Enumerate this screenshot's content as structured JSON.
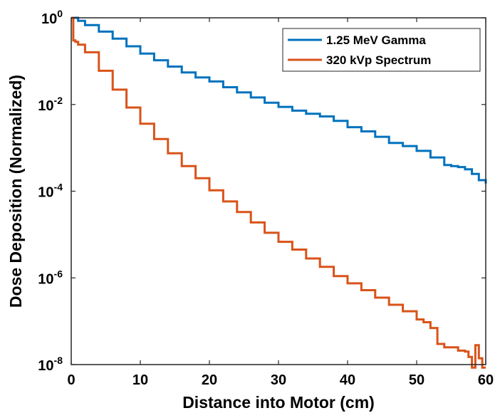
{
  "chart_data": {
    "type": "line",
    "line_style": "stairs",
    "title": "",
    "xlabel": "Distance into Motor (cm)",
    "ylabel": "Dose Deposition (Normalized)",
    "xlim": [
      0,
      60
    ],
    "ylim": [
      1e-08,
      1
    ],
    "yscale": "log",
    "xticks": [
      0,
      10,
      20,
      30,
      40,
      50,
      60
    ],
    "xtick_labels": [
      "0",
      "10",
      "20",
      "30",
      "40",
      "50",
      "60"
    ],
    "yticks": [
      1e-08,
      1e-06,
      0.0001,
      0.01,
      1
    ],
    "ytick_labels": [
      {
        "base": "10",
        "exp": "-8"
      },
      {
        "base": "10",
        "exp": "-6"
      },
      {
        "base": "10",
        "exp": "-4"
      },
      {
        "base": "10",
        "exp": "-2"
      },
      {
        "base": "10",
        "exp": "0"
      }
    ],
    "grid": false,
    "legend_position": "top-right",
    "series": [
      {
        "name": "1.25 MeV Gamma",
        "color": "#0072bd",
        "x": [
          0,
          1,
          2,
          4,
          6,
          8,
          10,
          12,
          14,
          16,
          18,
          20,
          22,
          24,
          26,
          28,
          30,
          32,
          34,
          36,
          38,
          40,
          42,
          44,
          46,
          48,
          50,
          52,
          54,
          55,
          56,
          57,
          58,
          59,
          60
        ],
        "y": [
          1.0,
          0.85,
          0.68,
          0.48,
          0.33,
          0.22,
          0.15,
          0.105,
          0.075,
          0.055,
          0.042,
          0.034,
          0.025,
          0.019,
          0.0145,
          0.011,
          0.0088,
          0.0072,
          0.0061,
          0.0053,
          0.0042,
          0.003,
          0.0024,
          0.0018,
          0.0013,
          0.0011,
          0.00085,
          0.0006,
          0.0004,
          0.00038,
          0.00036,
          0.00032,
          0.00025,
          0.00018,
          0.00015
        ]
      },
      {
        "name": "320 kVp Spectrum",
        "color": "#d95319",
        "x": [
          0,
          0.3,
          0.6,
          1,
          2,
          4,
          6,
          8,
          10,
          12,
          14,
          16,
          18,
          20,
          22,
          24,
          26,
          28,
          30,
          32,
          34,
          36,
          38,
          40,
          42,
          44,
          46,
          48,
          50,
          51,
          52,
          53,
          54,
          55,
          56,
          57,
          57.5,
          58,
          58.5,
          59,
          59.5,
          60
        ],
        "y": [
          1.0,
          0.3,
          0.28,
          0.24,
          0.16,
          0.06,
          0.022,
          0.0085,
          0.0036,
          0.0016,
          0.00075,
          0.00038,
          0.0002,
          0.000105,
          5.8e-05,
          3.3e-05,
          1.9e-05,
          1.1e-05,
          6.8e-06,
          4.5e-06,
          2.8e-06,
          1.8e-06,
          1.1e-06,
          7.5e-07,
          5.2e-07,
          3.5e-07,
          2.4e-07,
          1.7e-07,
          1.1e-07,
          9.5e-08,
          7e-08,
          3e-08,
          2.5e-08,
          2.5e-08,
          2.1e-08,
          2e-08,
          1.5e-08,
          8.5e-09,
          2.8e-08,
          1.4e-08,
          8.5e-09,
          8.5e-09
        ]
      }
    ]
  }
}
